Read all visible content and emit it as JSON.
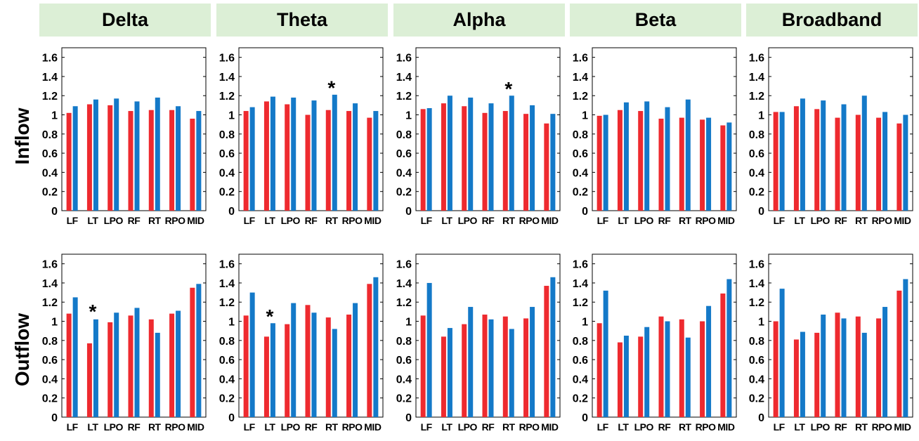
{
  "colors": {
    "series1": "#ee2a2f",
    "series2": "#1479c8",
    "header_bg": "#dcefd6"
  },
  "bands": [
    "Delta",
    "Theta",
    "Alpha",
    "Beta",
    "Broadband"
  ],
  "rows": [
    "Inflow",
    "Outflow"
  ],
  "chart_data": [
    {
      "type": "bar",
      "row": "Inflow",
      "band": "Delta",
      "categories": [
        "LF",
        "LT",
        "LPO",
        "RF",
        "RT",
        "RPO",
        "MID"
      ],
      "series": [
        {
          "name": "series1",
          "values": [
            1.02,
            1.11,
            1.1,
            1.04,
            1.05,
            1.05,
            0.96
          ]
        },
        {
          "name": "series2",
          "values": [
            1.09,
            1.16,
            1.17,
            1.14,
            1.18,
            1.09,
            1.04
          ]
        }
      ],
      "yticks": [
        "0",
        "0.2",
        "0.4",
        "0.6",
        "0.8",
        "1",
        "1.2",
        "1.4",
        "1.6"
      ],
      "ylim": [
        0,
        1.7
      ],
      "annotations": []
    },
    {
      "type": "bar",
      "row": "Inflow",
      "band": "Theta",
      "categories": [
        "LF",
        "LT",
        "LPO",
        "RF",
        "RT",
        "RPO",
        "MID"
      ],
      "series": [
        {
          "name": "series1",
          "values": [
            1.04,
            1.14,
            1.11,
            1.0,
            1.05,
            1.04,
            0.97
          ]
        },
        {
          "name": "series2",
          "values": [
            1.08,
            1.19,
            1.18,
            1.15,
            1.21,
            1.12,
            1.04
          ]
        }
      ],
      "yticks": [
        "0",
        "0.2",
        "0.4",
        "0.6",
        "0.8",
        "1",
        "1.2",
        "1.4",
        "1.6"
      ],
      "ylim": [
        0,
        1.7
      ],
      "annotations": [
        {
          "text": "*",
          "category": "RT",
          "y": 1.3
        }
      ]
    },
    {
      "type": "bar",
      "row": "Inflow",
      "band": "Alpha",
      "categories": [
        "LF",
        "LT",
        "LPO",
        "RF",
        "RT",
        "RPO",
        "MID"
      ],
      "series": [
        {
          "name": "series1",
          "values": [
            1.06,
            1.12,
            1.09,
            1.02,
            1.04,
            1.01,
            0.91
          ]
        },
        {
          "name": "series2",
          "values": [
            1.07,
            1.2,
            1.18,
            1.12,
            1.2,
            1.1,
            1.01
          ]
        }
      ],
      "yticks": [
        "0",
        "0.2",
        "0.4",
        "0.6",
        "0.8",
        "1",
        "1.2",
        "1.4",
        "1.6"
      ],
      "ylim": [
        0,
        1.7
      ],
      "annotations": [
        {
          "text": "*",
          "category": "RT",
          "y": 1.29
        }
      ]
    },
    {
      "type": "bar",
      "row": "Inflow",
      "band": "Beta",
      "categories": [
        "LF",
        "LT",
        "LPO",
        "RF",
        "RT",
        "RPO",
        "MID"
      ],
      "series": [
        {
          "name": "series1",
          "values": [
            0.99,
            1.05,
            1.04,
            0.96,
            0.97,
            0.95,
            0.89
          ]
        },
        {
          "name": "series2",
          "values": [
            1.0,
            1.13,
            1.14,
            1.08,
            1.16,
            0.97,
            0.92
          ]
        }
      ],
      "yticks": [
        "0",
        "0.2",
        "0.4",
        "0.6",
        "0.8",
        "1",
        "1.2",
        "1.4",
        "1.6"
      ],
      "ylim": [
        0,
        1.7
      ],
      "annotations": []
    },
    {
      "type": "bar",
      "row": "Inflow",
      "band": "Broadband",
      "categories": [
        "LF",
        "LT",
        "LPO",
        "RF",
        "RT",
        "RPO",
        "MID"
      ],
      "series": [
        {
          "name": "series1",
          "values": [
            1.03,
            1.09,
            1.06,
            0.97,
            1.0,
            0.97,
            0.91
          ]
        },
        {
          "name": "series2",
          "values": [
            1.03,
            1.17,
            1.15,
            1.11,
            1.2,
            1.03,
            1.0
          ]
        }
      ],
      "yticks": [
        "0",
        "0.2",
        "0.4",
        "0.6",
        "0.8",
        "1",
        "1.2",
        "1.4",
        "1.6"
      ],
      "ylim": [
        0,
        1.7
      ],
      "annotations": []
    },
    {
      "type": "bar",
      "row": "Outflow",
      "band": "Delta",
      "categories": [
        "LF",
        "LT",
        "LPO",
        "RF",
        "RT",
        "RPO",
        "MID"
      ],
      "series": [
        {
          "name": "series1",
          "values": [
            1.08,
            0.77,
            0.99,
            1.06,
            1.02,
            1.08,
            1.35
          ]
        },
        {
          "name": "series2",
          "values": [
            1.25,
            1.02,
            1.09,
            1.14,
            0.88,
            1.11,
            1.39
          ]
        }
      ],
      "yticks": [
        "0",
        "0.2",
        "0.4",
        "0.6",
        "0.8",
        "1",
        "1.2",
        "1.4",
        "1.6"
      ],
      "ylim": [
        0,
        1.7
      ],
      "annotations": [
        {
          "text": "*",
          "category": "LT",
          "y": 1.12
        }
      ]
    },
    {
      "type": "bar",
      "row": "Outflow",
      "band": "Theta",
      "categories": [
        "LF",
        "LT",
        "LPO",
        "RF",
        "RT",
        "RPO",
        "MID"
      ],
      "series": [
        {
          "name": "series1",
          "values": [
            1.06,
            0.84,
            0.97,
            1.17,
            1.04,
            1.07,
            1.39
          ]
        },
        {
          "name": "series2",
          "values": [
            1.3,
            0.98,
            1.19,
            1.09,
            0.92,
            1.19,
            1.46
          ]
        }
      ],
      "yticks": [
        "0",
        "0.2",
        "0.4",
        "0.6",
        "0.8",
        "1",
        "1.2",
        "1.4",
        "1.6"
      ],
      "ylim": [
        0,
        1.7
      ],
      "annotations": [
        {
          "text": "*",
          "category": "LT",
          "y": 1.07
        }
      ]
    },
    {
      "type": "bar",
      "row": "Outflow",
      "band": "Alpha",
      "categories": [
        "LF",
        "LT",
        "LPO",
        "RF",
        "RT",
        "RPO",
        "MID"
      ],
      "series": [
        {
          "name": "series1",
          "values": [
            1.06,
            0.84,
            0.97,
            1.07,
            1.05,
            1.03,
            1.37
          ]
        },
        {
          "name": "series2",
          "values": [
            1.4,
            0.93,
            1.15,
            1.02,
            0.92,
            1.15,
            1.46
          ]
        }
      ],
      "yticks": [
        "0",
        "0.2",
        "0.4",
        "0.6",
        "0.8",
        "1",
        "1.2",
        "1.4",
        "1.6"
      ],
      "ylim": [
        0,
        1.7
      ],
      "annotations": []
    },
    {
      "type": "bar",
      "row": "Outflow",
      "band": "Beta",
      "categories": [
        "LF",
        "LT",
        "LPO",
        "RF",
        "RT",
        "RPO",
        "MID"
      ],
      "series": [
        {
          "name": "series1",
          "values": [
            0.98,
            0.78,
            0.84,
            1.05,
            1.02,
            1.0,
            1.29
          ]
        },
        {
          "name": "series2",
          "values": [
            1.32,
            0.85,
            0.94,
            1.0,
            0.83,
            1.16,
            1.44
          ]
        }
      ],
      "yticks": [
        "0",
        "0.2",
        "0.4",
        "0.6",
        "0.8",
        "1",
        "1.2",
        "1.4",
        "1.6"
      ],
      "ylim": [
        0,
        1.7
      ],
      "annotations": []
    },
    {
      "type": "bar",
      "row": "Outflow",
      "band": "Broadband",
      "categories": [
        "LF",
        "LT",
        "LPO",
        "RF",
        "RT",
        "RPO",
        "MID"
      ],
      "series": [
        {
          "name": "series1",
          "values": [
            1.0,
            0.81,
            0.88,
            1.09,
            1.05,
            1.03,
            1.32
          ]
        },
        {
          "name": "series2",
          "values": [
            1.34,
            0.89,
            1.07,
            1.03,
            0.88,
            1.15,
            1.44
          ]
        }
      ],
      "yticks": [
        "0",
        "0.2",
        "0.4",
        "0.6",
        "0.8",
        "1",
        "1.2",
        "1.4",
        "1.6"
      ],
      "ylim": [
        0,
        1.7
      ],
      "annotations": []
    }
  ]
}
